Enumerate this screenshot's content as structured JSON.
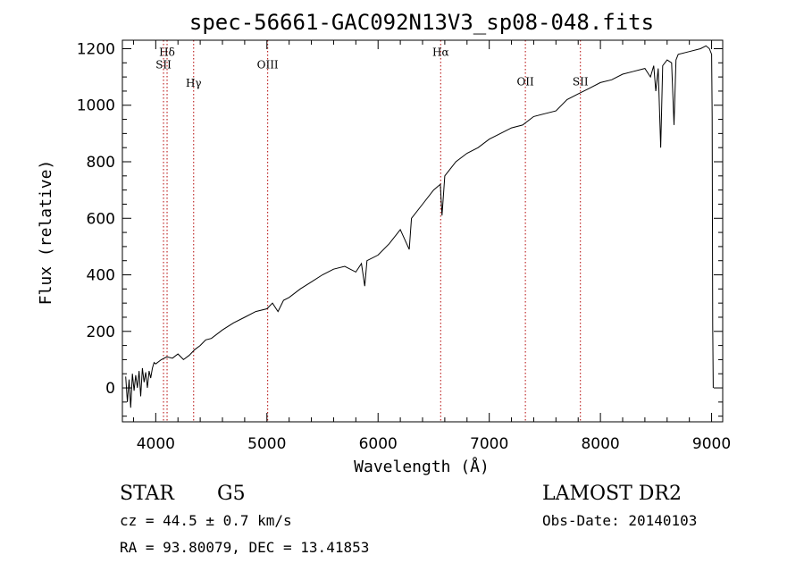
{
  "chart_data": {
    "type": "line",
    "title": "spec-56661-GAC092N13V3_sp08-048.fits",
    "xlabel": "Wavelength (Å)",
    "ylabel": "Flux (relative)",
    "xlim": [
      3700,
      9100
    ],
    "ylim": [
      -120,
      1230
    ],
    "x_ticks": [
      4000,
      5000,
      6000,
      7000,
      8000,
      9000
    ],
    "x_tick_labels": [
      "4000",
      "5000",
      "6000",
      "7000",
      "8000",
      "9000"
    ],
    "y_ticks": [
      0,
      200,
      400,
      600,
      800,
      1000,
      1200
    ],
    "y_tick_labels": [
      "0",
      "200",
      "400",
      "600",
      "800",
      "1000",
      "1200"
    ],
    "grid": false,
    "line_color": "#000000",
    "marker_color": "#b30000",
    "marker_lines": [
      {
        "label": "Hδ",
        "x": 4102,
        "label_y": 1175
      },
      {
        "label": "SII",
        "x": 4070,
        "label_y": 1130
      },
      {
        "label": "Hγ",
        "x": 4341,
        "label_y": 1065
      },
      {
        "label": "OIII",
        "x": 5007,
        "label_y": 1130
      },
      {
        "label": "Hα",
        "x": 6563,
        "label_y": 1175
      },
      {
        "label": "OII",
        "x": 7325,
        "label_y": 1070
      },
      {
        "label": "SII",
        "x": 7820,
        "label_y": 1070
      }
    ],
    "series": [
      {
        "x": [
          3730,
          3745,
          3760,
          3775,
          3790,
          3805,
          3820,
          3835,
          3850,
          3865,
          3880,
          3895,
          3910,
          3925,
          3940,
          3955,
          3970,
          3985,
          4000,
          4050,
          4100,
          4150,
          4200,
          4250,
          4300,
          4350,
          4400,
          4450,
          4500,
          4600,
          4700,
          4800,
          4900,
          5000,
          5050,
          5100,
          5150,
          5200,
          5300,
          5400,
          5500,
          5600,
          5700,
          5800,
          5850,
          5880,
          5900,
          6000,
          6100,
          6200,
          6280,
          6300,
          6400,
          6500,
          6560,
          6575,
          6600,
          6700,
          6800,
          6900,
          7000,
          7100,
          7200,
          7300,
          7400,
          7500,
          7600,
          7700,
          7800,
          7900,
          8000,
          8100,
          8200,
          8300,
          8400,
          8450,
          8480,
          8498,
          8520,
          8542,
          8560,
          8600,
          8640,
          8662,
          8680,
          8700,
          8800,
          8900,
          8950,
          8980,
          9000,
          9005,
          9010,
          9015
        ],
        "y": [
          40,
          -50,
          30,
          -70,
          50,
          -10,
          45,
          0,
          60,
          -30,
          70,
          20,
          55,
          0,
          60,
          35,
          70,
          90,
          85,
          100,
          110,
          105,
          120,
          100,
          115,
          135,
          150,
          170,
          175,
          205,
          230,
          250,
          270,
          280,
          300,
          270,
          310,
          320,
          350,
          375,
          400,
          420,
          430,
          410,
          440,
          360,
          450,
          470,
          510,
          560,
          490,
          600,
          650,
          700,
          720,
          610,
          750,
          800,
          830,
          850,
          880,
          900,
          920,
          930,
          960,
          970,
          980,
          1020,
          1040,
          1060,
          1080,
          1090,
          1110,
          1120,
          1130,
          1100,
          1140,
          1050,
          1130,
          850,
          1140,
          1160,
          1150,
          930,
          1160,
          1180,
          1190,
          1200,
          1210,
          1200,
          1180,
          960,
          220,
          0
        ]
      }
    ]
  },
  "info": {
    "object_type": "STAR",
    "subclass": "G5",
    "survey": "LAMOST DR2",
    "cz": "cz = 44.5 ± 0.7 km/s",
    "obs_date": "Obs-Date: 20140103",
    "coords": "RA =  93.80079, DEC =  13.41853"
  }
}
